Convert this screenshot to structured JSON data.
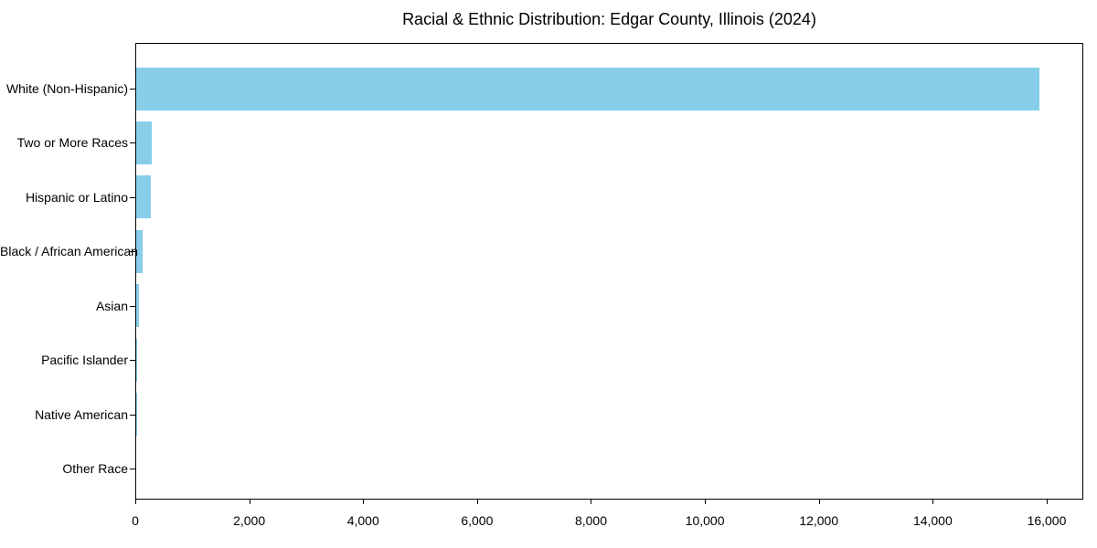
{
  "chart_data": {
    "type": "bar",
    "orientation": "horizontal",
    "title": "Racial & Ethnic Distribution: Edgar County, Illinois (2024)",
    "xlabel": "",
    "ylabel": "",
    "categories": [
      "White (Non-Hispanic)",
      "Two or More Races",
      "Hispanic or Latino",
      "Black / African American",
      "Asian",
      "Pacific Islander",
      "Native American",
      "Other Race"
    ],
    "values": [
      15850,
      270,
      250,
      110,
      45,
      5,
      3,
      1
    ],
    "xlim": [
      0,
      16642
    ],
    "x_ticks": [
      0,
      2000,
      4000,
      6000,
      8000,
      10000,
      12000,
      14000,
      16000
    ],
    "x_tick_labels": [
      "0",
      "2,000",
      "4,000",
      "6,000",
      "8,000",
      "10,000",
      "12,000",
      "14,000",
      "16,000"
    ],
    "bar_color": "#87CEEB",
    "frame_color": "#000000",
    "text_color": "#000000",
    "grid": false,
    "legend": false
  }
}
